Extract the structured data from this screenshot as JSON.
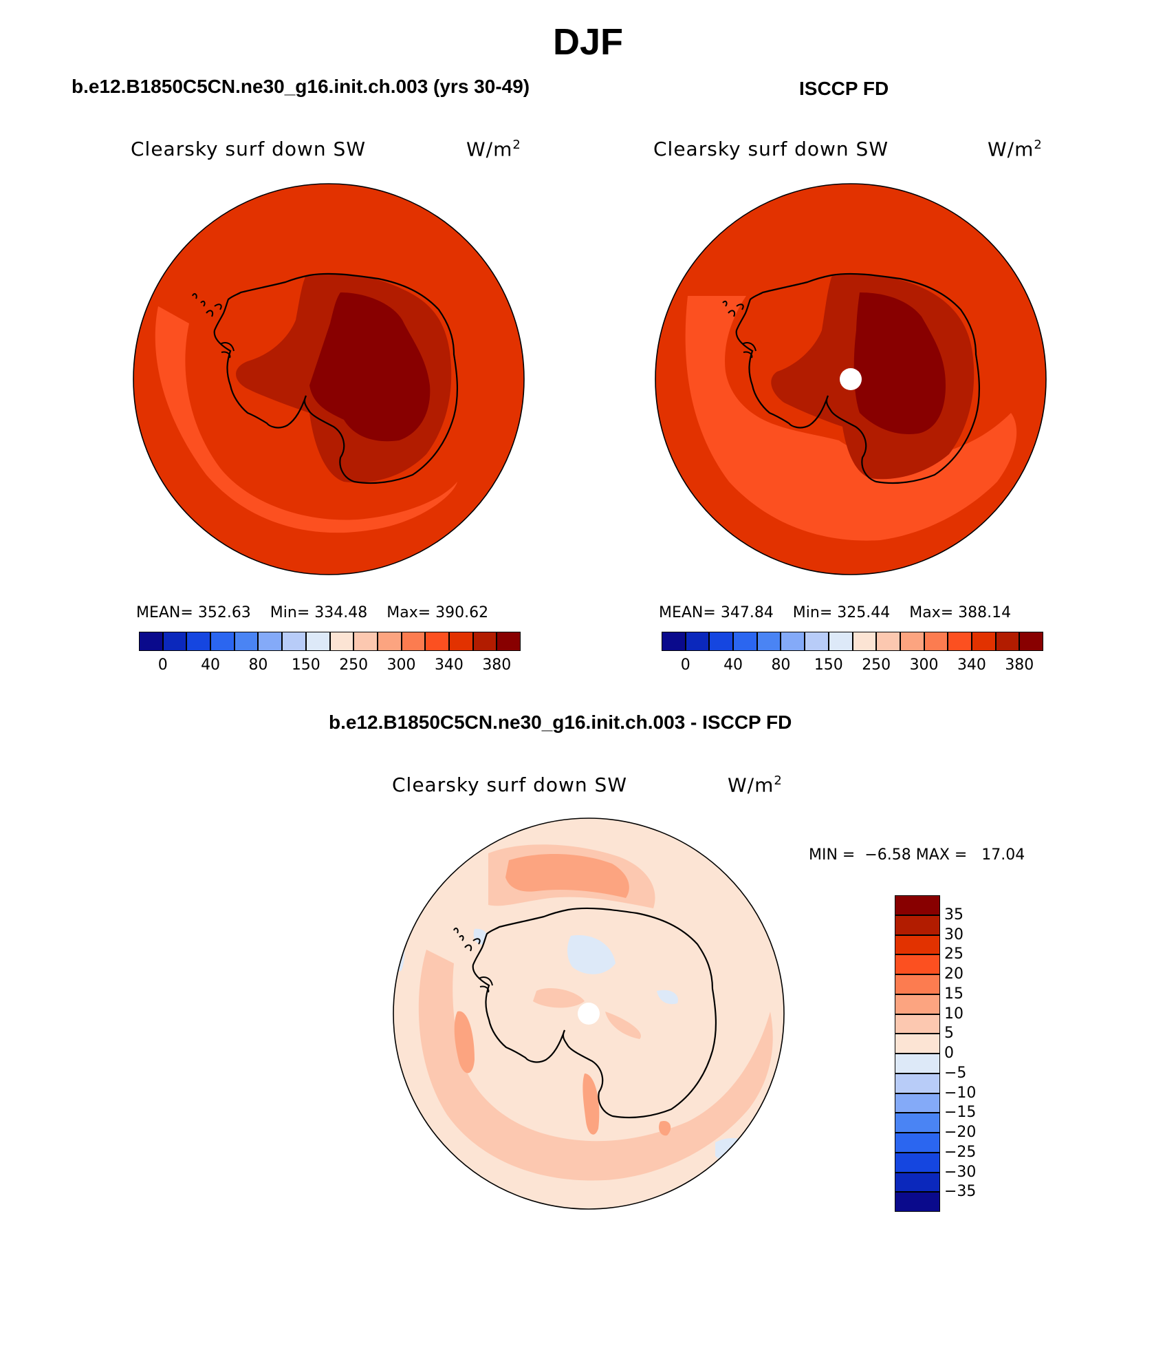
{
  "page_title": "DJF",
  "units_base": "W/m",
  "units_exp": "2",
  "panels": [
    {
      "title": "b.e12.B1850C5CN.ne30_g16.init.ch.003 (yrs 30-49)",
      "variable": "Clearsky surf down SW",
      "stats": {
        "mean_label": "MEAN=",
        "mean": "352.63",
        "min_label": "Min=",
        "min": "334.48",
        "max_label": "Max=",
        "max": "390.62"
      }
    },
    {
      "title": "ISCCP FD",
      "variable": "Clearsky surf down SW",
      "stats": {
        "mean_label": "MEAN=",
        "mean": "347.84",
        "min_label": "Min=",
        "min": "325.44",
        "max_label": "Max=",
        "max": "388.14"
      }
    },
    {
      "title": "b.e12.B1850C5CN.ne30_g16.init.ch.003 - ISCCP FD",
      "variable": "Clearsky surf down SW",
      "stats": {
        "min_label": "MIN =",
        "min": "−6.58",
        "max_label": "MAX =",
        "max": "17.04"
      }
    }
  ],
  "colorbar_horizontal": {
    "colors": [
      "#0a0a8c",
      "#0b28bc",
      "#1546e0",
      "#2b66f0",
      "#4a84f4",
      "#84aaf8",
      "#b8ccf8",
      "#dde9f8",
      "#fce4d4",
      "#fcc8b0",
      "#fca480",
      "#fc7c50",
      "#fc5020",
      "#e23200",
      "#b21c00",
      "#880000"
    ],
    "tick_labels": [
      "0",
      "40",
      "80",
      "150",
      "250",
      "300",
      "340",
      "380"
    ]
  },
  "colorbar_vertical": {
    "colors_top_to_bottom": [
      "#880000",
      "#b21c00",
      "#e23200",
      "#fc5020",
      "#fc7c50",
      "#fca480",
      "#fcc8b0",
      "#fce4d4",
      "#dde9f8",
      "#b8ccf8",
      "#84aaf8",
      "#4a84f4",
      "#2b66f0",
      "#1546e0",
      "#0b28bc",
      "#0a0a8c"
    ],
    "tick_labels": [
      "35",
      "30",
      "25",
      "20",
      "15",
      "10",
      "5",
      "0",
      "−5",
      "−10",
      "−15",
      "−20",
      "−25",
      "−30",
      "−35"
    ]
  },
  "map_colors": {
    "ocean_model": "#e23200",
    "ocean_band_model": "#fc5020",
    "ice_model": "#b21c00",
    "plateau_model": "#880000",
    "ocean_obs": "#e23200",
    "ocean_band_obs": "#fc5020",
    "ice_obs": "#b21c00",
    "plateau_obs": "#880000",
    "diff_base": "#fce4d4",
    "diff_pos": "#fcc8b0",
    "diff_pos2": "#fca480",
    "diff_neg": "#dde9f8"
  }
}
